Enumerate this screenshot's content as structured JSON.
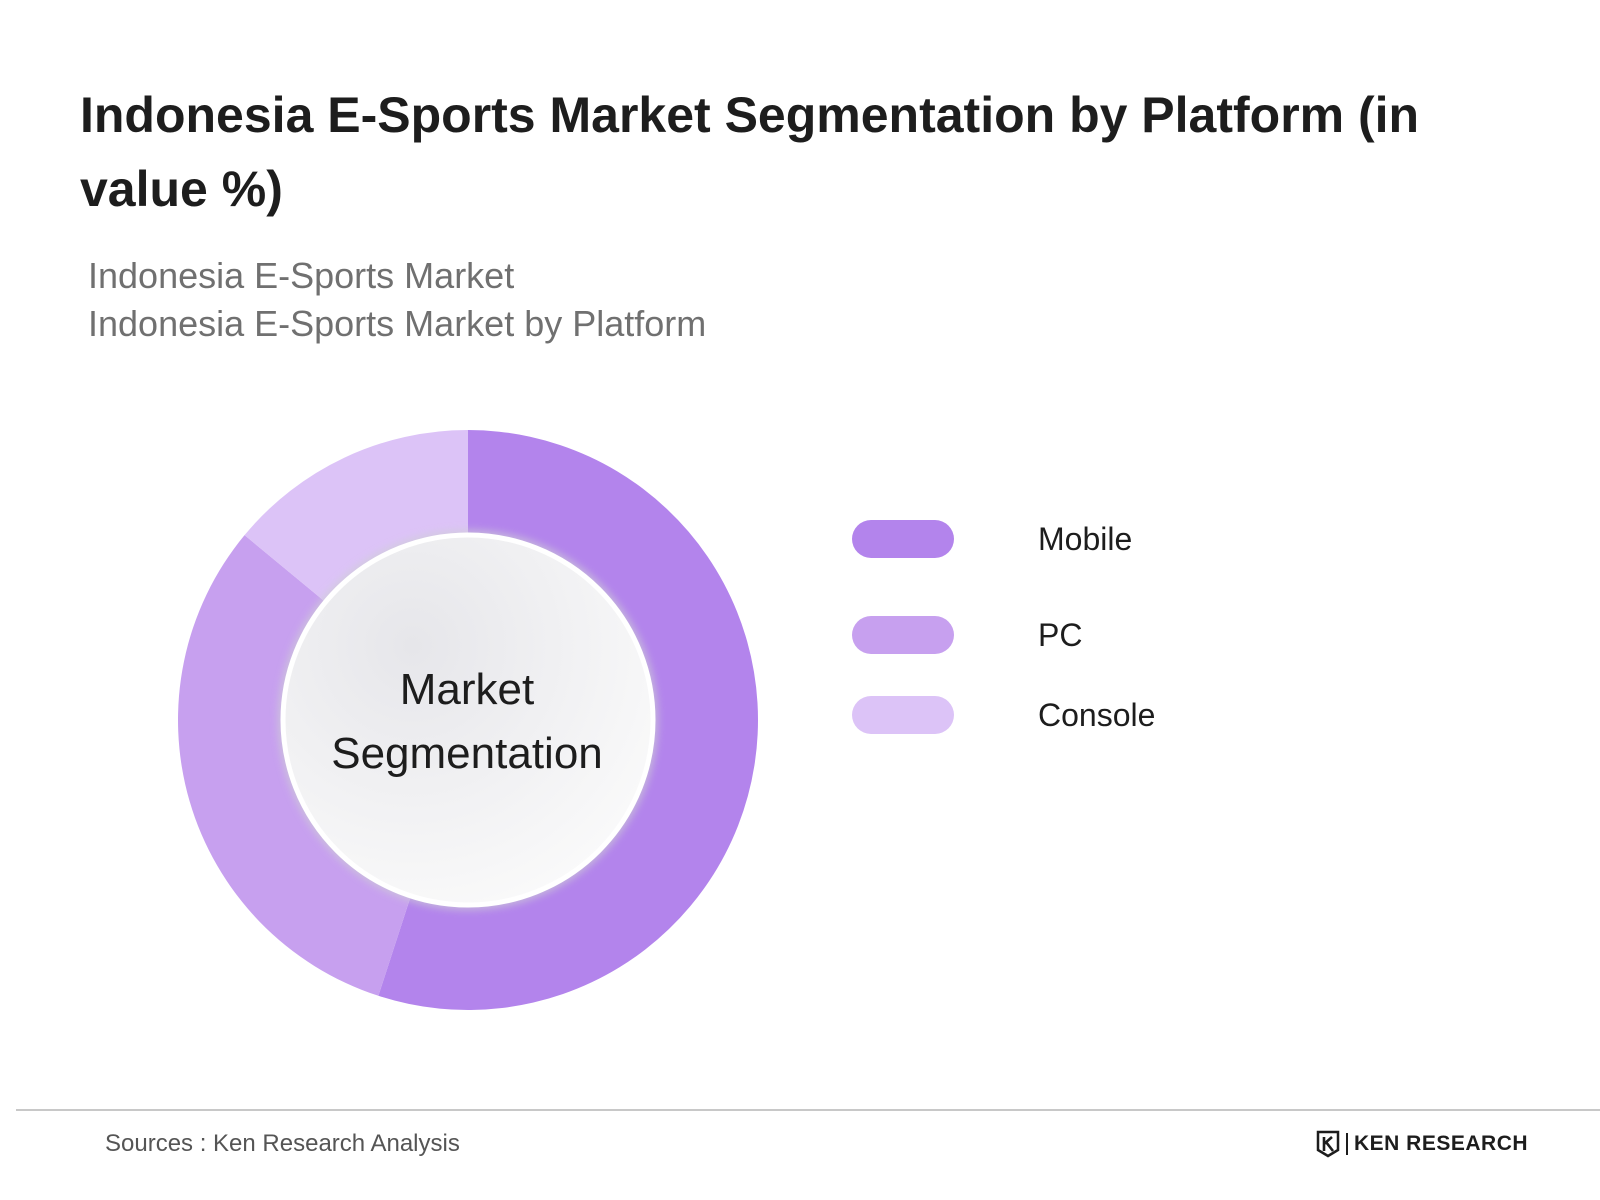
{
  "title": "Indonesia E-Sports Market Segmentation by Platform (in value %)",
  "subtitle": {
    "line1": "Indonesia E-Sports Market",
    "line2": "Indonesia E-Sports Market by Platform"
  },
  "center_label": {
    "line1": "Market",
    "line2": "Segmentation"
  },
  "chart_data": {
    "type": "pie",
    "variant": "donut",
    "categories": [
      "Mobile",
      "PC",
      "Console"
    ],
    "values": [
      55,
      31,
      14
    ],
    "colors": [
      "#b384ec",
      "#c7a0ef",
      "#dcc3f7"
    ],
    "legend_position": "right"
  },
  "legend": [
    {
      "label": "Mobile",
      "color": "#b384ec"
    },
    {
      "label": "PC",
      "color": "#c7a0ef"
    },
    {
      "label": "Console",
      "color": "#dcc3f7"
    }
  ],
  "footer": {
    "source": "Sources : Ken Research Analysis",
    "brand": "KEN RESEARCH"
  }
}
